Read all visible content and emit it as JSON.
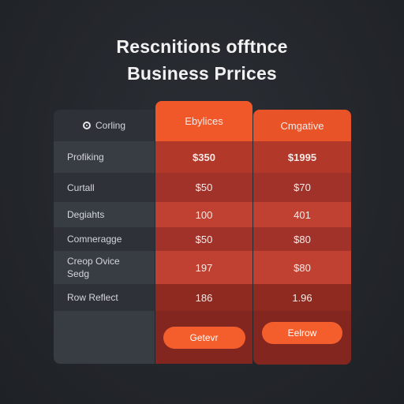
{
  "title_line1": "Resc​nitions offtnce",
  "title_line2": "Business Prrices",
  "labels": {
    "header": "Corling",
    "rows": [
      "Profiking",
      "Curtall",
      "Degiahts",
      "Comneragge",
      "Creop Ovice",
      "Sedg",
      "Row Reflect"
    ]
  },
  "plans": [
    {
      "name": "Ebylices",
      "price": "$350",
      "values": [
        "$50",
        "100",
        "$50",
        "197",
        "186"
      ],
      "button": "Getevr"
    },
    {
      "name": "Cmgative",
      "price": "$1995",
      "values": [
        "$70",
        "401",
        "$80",
        "$80",
        "1.96"
      ],
      "button": "Eelrow"
    }
  ],
  "colors": {
    "accent": "#f05a28",
    "background": "#23262b",
    "label_col": "#2e3238"
  },
  "icons": {
    "header_icon": "gear-icon"
  }
}
